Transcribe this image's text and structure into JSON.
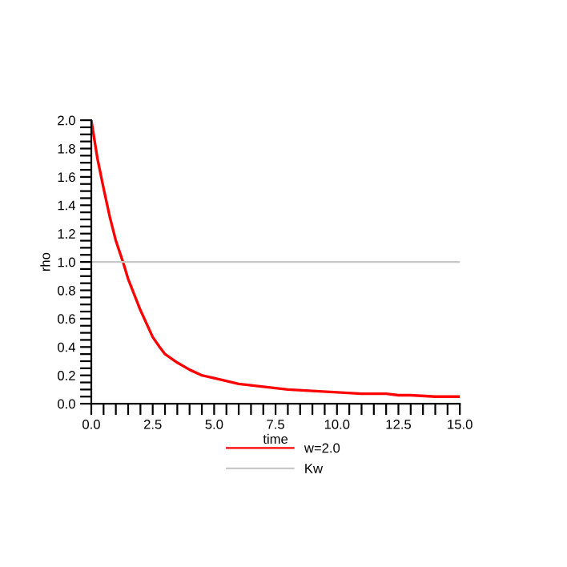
{
  "chart_data": {
    "type": "line",
    "xlabel": "time",
    "ylabel": "rho",
    "series": [
      {
        "name": "w=2.0",
        "color": "#ff0000",
        "x": [
          0,
          0.25,
          0.5,
          0.75,
          1.0,
          1.29,
          1.5,
          2.0,
          2.5,
          2.78,
          3.0,
          3.5,
          4.0,
          4.5,
          5,
          6,
          7,
          7.5,
          8,
          9,
          10,
          11,
          12,
          12.5,
          13,
          14,
          15
        ],
        "values": [
          2.0,
          1.73,
          1.52,
          1.32,
          1.15,
          1.0,
          0.88,
          0.66,
          0.47,
          0.4,
          0.35,
          0.29,
          0.24,
          0.2,
          0.18,
          0.14,
          0.12,
          0.11,
          0.1,
          0.09,
          0.08,
          0.07,
          0.07,
          0.06,
          0.06,
          0.05,
          0.05
        ]
      }
    ],
    "ref_lines": [
      {
        "axis": "y",
        "value": 1.0,
        "label": "Kw",
        "color": "#c8c8c8",
        "line_style": "solid"
      }
    ],
    "xlim": [
      0,
      15
    ],
    "xticks": [
      {
        "value": 0,
        "label": "0.0"
      },
      {
        "value": 2.5,
        "label": "2.5"
      },
      {
        "value": 5,
        "label": "5.0"
      },
      {
        "value": 7.5,
        "label": "7.5"
      },
      {
        "value": 10,
        "label": "10.0"
      },
      {
        "value": 12.5,
        "label": "12.5"
      },
      {
        "value": 15,
        "label": "15.0"
      }
    ],
    "ylim": [
      0,
      2.0
    ],
    "yticks": [
      {
        "value": 0,
        "label": "0.0"
      },
      0.2,
      0.4,
      0.6,
      0.8,
      {
        "value": 1.0,
        "label": "1.0"
      },
      1.2,
      1.4,
      1.6,
      1.8,
      {
        "value": 2.0,
        "label": "2.0"
      }
    ],
    "grid": false,
    "legend": "bottom",
    "marker": "none",
    "line_style": "solid"
  }
}
